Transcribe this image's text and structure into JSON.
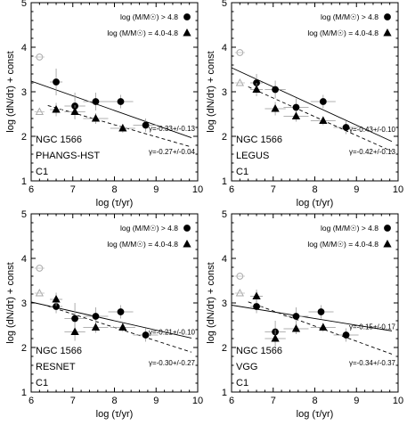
{
  "figure": {
    "xlabel": "log (τ/yr)",
    "ylabel": "log (dN/dτ) + const",
    "legend": {
      "high_mass": "log (M/M☉) > 4.8",
      "low_mass": "log (M/M☉) = 4.0-4.8"
    }
  },
  "chart_data": [
    {
      "type": "scatter",
      "galaxy": "NGC 1566",
      "catalog": "PHANGS-HST",
      "class": "C1",
      "xlim": [
        6,
        10
      ],
      "ylim": [
        1,
        5
      ],
      "xticks": [
        6,
        7,
        8,
        9,
        10
      ],
      "yticks": [
        1,
        2,
        3,
        4,
        5
      ],
      "series": [
        {
          "name": "log (M/M☉) > 4.8",
          "marker": "circle",
          "x": [
            6.6,
            7.05,
            7.55,
            8.15,
            8.75
          ],
          "y": [
            3.22,
            2.68,
            2.78,
            2.78,
            2.25
          ],
          "xerr": [
            0.15,
            0.25,
            0.3,
            0.3,
            0.3
          ],
          "yerr": [
            0.3,
            0.3,
            0.2,
            0.15,
            0.15
          ]
        },
        {
          "name": "log (M/M☉) = 4.0-4.8",
          "marker": "triangle",
          "x": [
            6.6,
            7.05,
            7.55,
            8.2
          ],
          "y": [
            2.6,
            2.55,
            2.4,
            2.18
          ],
          "xerr": [
            0.15,
            0.25,
            0.3,
            0.3
          ],
          "yerr": [
            0.15,
            0.15,
            0.12,
            0.1
          ]
        }
      ],
      "excluded": {
        "circle": [
          6.2,
          3.78
        ],
        "triangle": [
          6.2,
          2.55
        ]
      },
      "fits": [
        {
          "label": "γ=-0.33+/-0.13",
          "slope": -0.33,
          "intercept": 5.22,
          "x_range": [
            6,
            9.85
          ],
          "style": "solid"
        },
        {
          "label": "γ=-0.27+/-0.04",
          "slope": -0.27,
          "intercept": 4.42,
          "x_range": [
            6.4,
            9.85
          ],
          "style": "dashed"
        }
      ]
    },
    {
      "type": "scatter",
      "galaxy": "NGC 1566",
      "catalog": "LEGUS",
      "class": "C1",
      "xlim": [
        6,
        10
      ],
      "ylim": [
        1,
        5
      ],
      "xticks": [
        6,
        7,
        8,
        9,
        10
      ],
      "yticks": [
        1,
        2,
        3,
        4,
        5
      ],
      "series": [
        {
          "name": "log (M/M☉) > 4.8",
          "marker": "circle",
          "x": [
            6.6,
            7.05,
            7.55,
            8.2,
            8.75
          ],
          "y": [
            3.2,
            3.05,
            2.65,
            2.78,
            2.2
          ],
          "xerr": [
            0.15,
            0.25,
            0.3,
            0.3,
            0.3
          ],
          "yerr": [
            0.2,
            0.2,
            0.2,
            0.15,
            0.15
          ]
        },
        {
          "name": "log (M/M☉) = 4.0-4.8",
          "marker": "triangle",
          "x": [
            6.6,
            7.05,
            7.55,
            8.2
          ],
          "y": [
            3.05,
            2.62,
            2.45,
            2.35
          ],
          "xerr": [
            0.15,
            0.25,
            0.3,
            0.3
          ],
          "yerr": [
            0.15,
            0.15,
            0.12,
            0.1
          ]
        }
      ],
      "excluded": {
        "circle": [
          6.2,
          3.88
        ],
        "triangle": [
          6.2,
          3.2
        ]
      },
      "fits": [
        {
          "label": "γ=-0.43+/-0.10",
          "slope": -0.43,
          "intercept": 6.12,
          "x_range": [
            6,
            9.85
          ],
          "style": "solid"
        },
        {
          "label": "γ=-0.42+/-0.13",
          "slope": -0.42,
          "intercept": 5.8,
          "x_range": [
            6.4,
            9.85
          ],
          "style": "dashed"
        }
      ]
    },
    {
      "type": "scatter",
      "galaxy": "NGC 1566",
      "catalog": "RESNET",
      "class": "C1",
      "xlim": [
        6,
        10
      ],
      "ylim": [
        1,
        5
      ],
      "xticks": [
        6,
        7,
        8,
        9,
        10
      ],
      "yticks": [
        1,
        2,
        3,
        4,
        5
      ],
      "series": [
        {
          "name": "log (M/M☉) > 4.8",
          "marker": "circle",
          "x": [
            6.6,
            7.05,
            7.55,
            8.15,
            8.75
          ],
          "y": [
            2.92,
            2.65,
            2.7,
            2.8,
            2.28
          ],
          "xerr": [
            0.15,
            0.25,
            0.3,
            0.3,
            0.3
          ],
          "yerr": [
            0.15,
            0.35,
            0.2,
            0.15,
            0.15
          ]
        },
        {
          "name": "log (M/M☉) = 4.0-4.8",
          "marker": "triangle",
          "x": [
            6.6,
            7.05,
            7.55,
            8.2
          ],
          "y": [
            3.08,
            2.35,
            2.45,
            2.45
          ],
          "xerr": [
            0.15,
            0.25,
            0.3,
            0.3
          ],
          "yerr": [
            0.15,
            0.2,
            0.12,
            0.1
          ]
        }
      ],
      "excluded": {
        "circle": [
          6.2,
          3.78
        ],
        "triangle": [
          6.2,
          3.22
        ]
      },
      "fits": [
        {
          "label": "γ=-0.21+/-0.10",
          "slope": -0.21,
          "intercept": 4.28,
          "x_range": [
            6,
            9.85
          ],
          "style": "solid"
        },
        {
          "label": "γ=-0.30+/-0.27",
          "slope": -0.3,
          "intercept": 4.85,
          "x_range": [
            6.4,
            9.85
          ],
          "style": "dashed"
        }
      ]
    },
    {
      "type": "scatter",
      "galaxy": "NGC 1566",
      "catalog": "VGG",
      "class": "C1",
      "xlim": [
        6,
        10
      ],
      "ylim": [
        1,
        5
      ],
      "xticks": [
        6,
        7,
        8,
        9,
        10
      ],
      "yticks": [
        1,
        2,
        3,
        4,
        5
      ],
      "series": [
        {
          "name": "log (M/M☉) > 4.8",
          "marker": "circle",
          "x": [
            6.6,
            7.05,
            7.55,
            8.15,
            8.75
          ],
          "y": [
            2.92,
            2.35,
            2.7,
            2.8,
            2.28
          ],
          "xerr": [
            0.15,
            0.25,
            0.3,
            0.3,
            0.3
          ],
          "yerr": [
            0.15,
            0.25,
            0.2,
            0.15,
            0.15
          ]
        },
        {
          "name": "log (M/M☉) = 4.0-4.8",
          "marker": "triangle",
          "x": [
            6.6,
            7.05,
            7.55,
            8.2
          ],
          "y": [
            3.15,
            2.2,
            2.42,
            2.45
          ],
          "xerr": [
            0.15,
            0.25,
            0.3,
            0.3
          ],
          "yerr": [
            0.15,
            0.2,
            0.12,
            0.1
          ]
        }
      ],
      "excluded": {
        "circle": [
          6.2,
          3.6
        ],
        "triangle": [
          6.2,
          3.22
        ]
      },
      "fits": [
        {
          "label": "γ=-0.15+/-0.17",
          "slope": -0.15,
          "intercept": 3.85,
          "x_range": [
            6,
            9.85
          ],
          "style": "solid"
        },
        {
          "label": "γ=-0.34+/-0.37",
          "slope": -0.34,
          "intercept": 5.2,
          "x_range": [
            6.4,
            9.85
          ],
          "style": "dashed"
        }
      ]
    }
  ]
}
